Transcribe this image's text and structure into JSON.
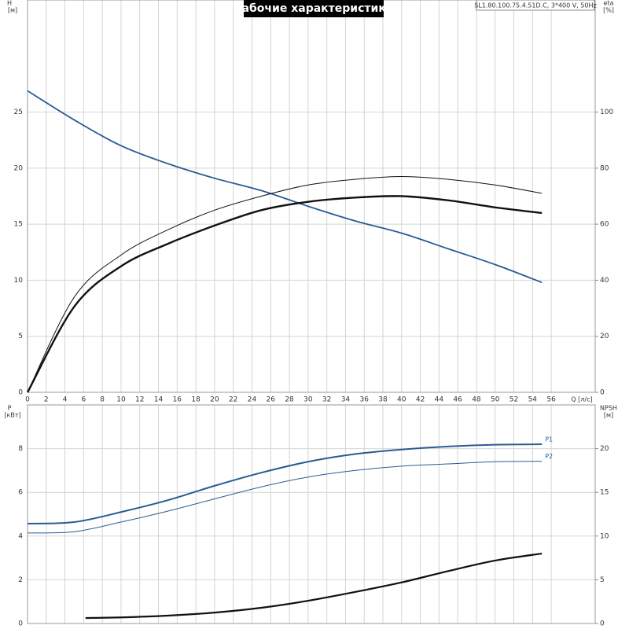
{
  "title": "Рабочие характеристики",
  "model": "SL1.80.100.75.4.51D.C, 3*400 V, 50Hz",
  "chart_data": [
    {
      "type": "line",
      "x_label": "Q [л/с]",
      "y_label": "H",
      "y_unit": "[м]",
      "y2_label": "eta",
      "y2_unit": "[%]",
      "xlim": [
        0,
        60.7
      ],
      "xticks": [
        0,
        2,
        4,
        6,
        8,
        10,
        12,
        14,
        16,
        18,
        20,
        22,
        24,
        26,
        28,
        30,
        32,
        34,
        36,
        38,
        40,
        42,
        44,
        46,
        48,
        50,
        52,
        54,
        56
      ],
      "ylim": [
        0,
        35
      ],
      "yticks": [
        0,
        5,
        10,
        15,
        20,
        25
      ],
      "y2lim": [
        0,
        140
      ],
      "y2ticks": [
        0,
        20,
        40,
        60,
        80,
        100
      ],
      "grid": true,
      "x": [
        0,
        5,
        10,
        15,
        20,
        25,
        30,
        35,
        40,
        45,
        50,
        55
      ],
      "series": [
        {
          "color": "#2a5b94",
          "line_width": 1.8,
          "axis": "y",
          "values": [
            26.9,
            24.3,
            22.0,
            20.4,
            19.1,
            18.0,
            16.6,
            15.3,
            14.2,
            12.8,
            11.4,
            9.8
          ]
        },
        {
          "color": "#111111",
          "line_width": 2.4,
          "axis": "y2",
          "values": [
            0,
            30.6,
            45,
            53,
            59.5,
            65,
            68,
            69.5,
            70,
            68.5,
            66,
            64
          ]
        },
        {
          "color": "#111111",
          "line_width": 1,
          "axis": "y2",
          "values": [
            0,
            34,
            49,
            58,
            65,
            70,
            74,
            76,
            77,
            76,
            74,
            71
          ]
        }
      ]
    },
    {
      "type": "line",
      "y_label": "P",
      "y_unit": "[кВт]",
      "y2_label": "NPSH",
      "y2_unit": "[м]",
      "xlim": [
        0,
        60.7
      ],
      "xticks": [
        0,
        2,
        4,
        6,
        8,
        10,
        12,
        14,
        16,
        18,
        20,
        22,
        24,
        26,
        28,
        30,
        32,
        34,
        36,
        38,
        40,
        42,
        44,
        46,
        48,
        50,
        52,
        54,
        56
      ],
      "ylim": [
        0,
        10
      ],
      "yticks": [
        0,
        2,
        4,
        6,
        8
      ],
      "y2lim": [
        0,
        25
      ],
      "y2ticks": [
        0,
        5,
        10,
        15,
        20
      ],
      "grid": true,
      "x": [
        0,
        5,
        10,
        15,
        20,
        25,
        30,
        35,
        40,
        45,
        50,
        55
      ],
      "series": [
        {
          "name": "P1",
          "color": "#2a5b94",
          "line_width": 2,
          "axis": "y",
          "values": [
            4.57,
            4.64,
            5.1,
            5.64,
            6.3,
            6.9,
            7.4,
            7.75,
            7.96,
            8.1,
            8.18,
            8.2
          ]
        },
        {
          "name": "P2",
          "color": "#2a5b94",
          "line_width": 1,
          "axis": "y",
          "values": [
            4.14,
            4.2,
            4.64,
            5.14,
            5.7,
            6.25,
            6.7,
            7.0,
            7.2,
            7.3,
            7.4,
            7.42
          ]
        },
        {
          "color": "#111111",
          "line_width": 2.2,
          "axis": "y2",
          "x": [
            6.2,
            10,
            15,
            20,
            25,
            30,
            35,
            40,
            45,
            50,
            55
          ],
          "values": [
            0.63,
            0.7,
            0.9,
            1.25,
            1.8,
            2.6,
            3.6,
            4.7,
            6.0,
            7.2,
            8.0
          ]
        }
      ]
    }
  ]
}
